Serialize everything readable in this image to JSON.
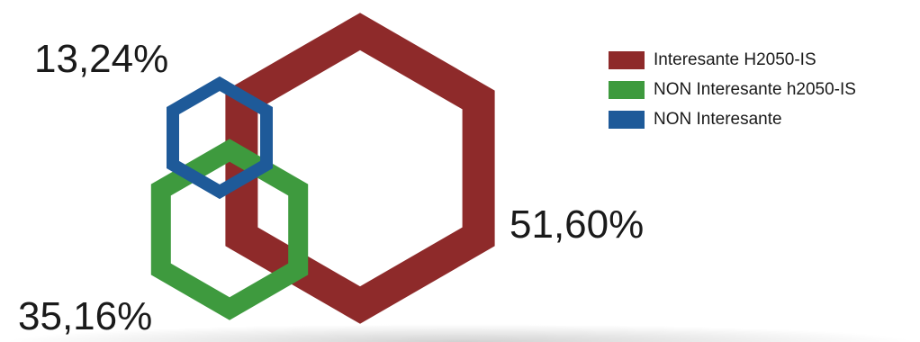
{
  "chart_data": {
    "type": "area",
    "title": "",
    "series": [
      {
        "name": "Interesante H2050-IS",
        "value": 51.6,
        "label": "51,60%",
        "color": "#8e2a2a"
      },
      {
        "name": "NON Interesante h2050-IS",
        "value": 35.16,
        "label": "35,16%",
        "color": "#3e9a3e"
      },
      {
        "name": "NON Interesante",
        "value": 13.24,
        "label": "13,24%",
        "color": "#1e5a99"
      }
    ],
    "legend_position": "top-right"
  }
}
